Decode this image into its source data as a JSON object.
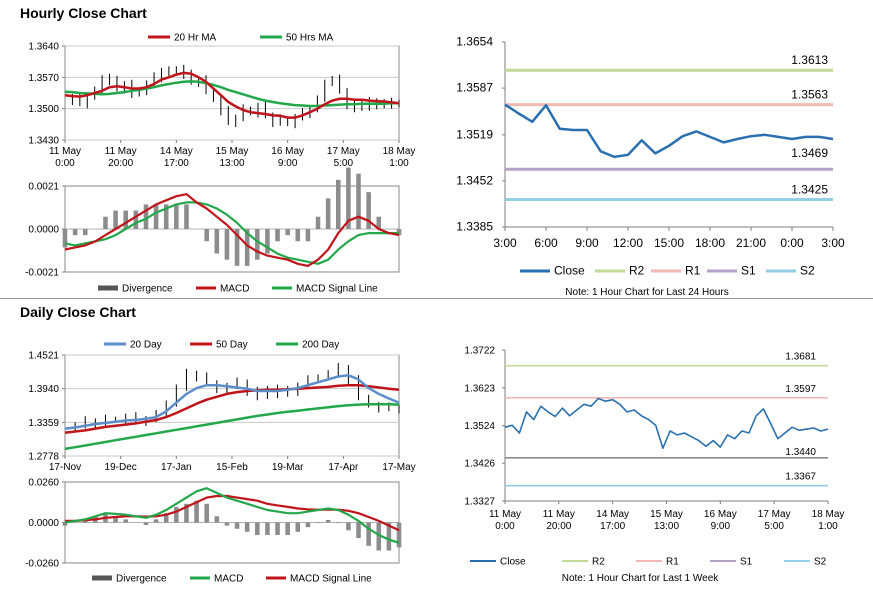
{
  "sections": {
    "hourly_title": "Hourly Close Chart",
    "daily_title": "Daily Close Chart"
  },
  "colors": {
    "ma_short": "#c0141b",
    "ma_long": "#22a84a",
    "close": "#2a70b0",
    "r2": "#c3d99a",
    "r1": "#f2b8b3",
    "s1": "#b4a3c8",
    "s2": "#92cfe2",
    "divergence": "#8c8c8c",
    "price": "#000000",
    "axis": "#7f7f7f",
    "ma_day20": "#5b8ec9"
  },
  "chart_data": [
    {
      "id": "hourly_price",
      "type": "line",
      "title": "Hourly Close Chart",
      "x_tick_labels": [
        [
          "11 May",
          "0:00"
        ],
        [
          "11 May",
          "20:00"
        ],
        [
          "14 May",
          "17:00"
        ],
        [
          "15 May",
          "13:00"
        ],
        [
          "16 May",
          "9:00"
        ],
        [
          "17 May",
          "5:00"
        ],
        [
          "18 May",
          "1:00"
        ]
      ],
      "y_ticks": [
        "1.3640",
        "1.3570",
        "1.3500",
        "1.3430"
      ],
      "ylim": [
        1.343,
        1.364
      ],
      "legend": [
        "20 Hr MA",
        "50 Hrs MA"
      ],
      "series": [
        {
          "name": "Close",
          "values": [
            1.3518,
            1.3525,
            1.3512,
            1.3528,
            1.354,
            1.357,
            1.3562,
            1.3545,
            1.3555,
            1.3532,
            1.354,
            1.3555,
            1.357,
            1.3585,
            1.358,
            1.359,
            1.3576,
            1.356,
            1.3565,
            1.354,
            1.352,
            1.3495,
            1.347,
            1.348,
            1.35,
            1.349,
            1.3505,
            1.3485,
            1.347,
            1.3478,
            1.3466,
            1.348,
            1.349,
            1.35,
            1.352,
            1.356,
            1.3565,
            1.354,
            1.351,
            1.35,
            1.3518,
            1.3505,
            1.3512,
            1.3515,
            1.3508,
            1.3515
          ]
        },
        {
          "name": "20 Hr MA",
          "values": [
            1.353,
            1.3528,
            1.3527,
            1.353,
            1.3535,
            1.354,
            1.3548,
            1.355,
            1.3548,
            1.3545,
            1.3545,
            1.3548,
            1.3555,
            1.3565,
            1.357,
            1.3576,
            1.358,
            1.3578,
            1.357,
            1.356,
            1.3545,
            1.353,
            1.3515,
            1.3505,
            1.3497,
            1.3492,
            1.349,
            1.3488,
            1.3485,
            1.3484,
            1.348,
            1.348,
            1.3485,
            1.3492,
            1.35,
            1.351,
            1.3518,
            1.3522,
            1.3522,
            1.352,
            1.352,
            1.3518,
            1.3517,
            1.3516,
            1.3514,
            1.3512
          ]
        },
        {
          "name": "50 Hrs MA",
          "values": [
            1.3538,
            1.3537,
            1.3535,
            1.3534,
            1.3533,
            1.3532,
            1.3533,
            1.3535,
            1.3537,
            1.354,
            1.3542,
            1.3545,
            1.3548,
            1.3552,
            1.3555,
            1.3558,
            1.356,
            1.3561,
            1.356,
            1.3557,
            1.3553,
            1.3548,
            1.3542,
            1.3537,
            1.3532,
            1.3527,
            1.3522,
            1.3518,
            1.3515,
            1.3512,
            1.351,
            1.3508,
            1.3507,
            1.3506,
            1.3506,
            1.3507,
            1.3508,
            1.3509,
            1.351,
            1.351,
            1.3511,
            1.3511,
            1.3511,
            1.3511,
            1.3512,
            1.3512
          ]
        }
      ]
    },
    {
      "id": "hourly_macd",
      "type": "line",
      "y_ticks": [
        "0.0021",
        "0.0000",
        "-0.0021"
      ],
      "ylim": [
        -0.0021,
        0.0021
      ],
      "legend": [
        "Divergence",
        "MACD",
        "MACD Signal Line"
      ],
      "series": [
        {
          "name": "MACD",
          "values": [
            -0.001,
            -0.0009,
            -0.0008,
            -0.0006,
            -0.0003,
            0.0,
            0.0003,
            0.0006,
            0.0009,
            0.0012,
            0.0014,
            0.0016,
            0.0017,
            0.0013,
            0.001,
            0.0006,
            0.0002,
            -0.0003,
            -0.0008,
            -0.0011,
            -0.0013,
            -0.0014,
            -0.0015,
            -0.0017,
            -0.0018,
            -0.0015,
            -0.001,
            -0.0002,
            0.0004,
            0.0006,
            0.0004,
            0.0,
            -0.0002,
            -0.0003
          ]
        },
        {
          "name": "MACD Signal Line",
          "values": [
            -0.0007,
            -0.0008,
            -0.0007,
            -0.0006,
            -0.0005,
            -0.0003,
            0.0,
            0.0003,
            0.0005,
            0.0008,
            0.001,
            0.0012,
            0.0013,
            0.0013,
            0.0012,
            0.001,
            0.0007,
            0.0003,
            -0.0002,
            -0.0006,
            -0.0009,
            -0.0012,
            -0.0014,
            -0.0015,
            -0.0016,
            -0.0017,
            -0.0015,
            -0.001,
            -0.0006,
            -0.0003,
            -0.0002,
            -0.0002,
            -0.0002,
            -0.0002
          ]
        }
      ]
    },
    {
      "id": "hourly_levels",
      "type": "line",
      "x_tick_labels": [
        "3:00",
        "6:00",
        "9:00",
        "12:00",
        "15:00",
        "18:00",
        "21:00",
        "0:00",
        "3:00"
      ],
      "y_ticks": [
        "1.3654",
        "1.3587",
        "1.3519",
        "1.3452",
        "1.3385"
      ],
      "ylim": [
        1.3385,
        1.3654
      ],
      "levels": {
        "R2": 1.3613,
        "R1": 1.3563,
        "S1": 1.3469,
        "S2": 1.3425
      },
      "level_labels": [
        "1.3613",
        "1.3563",
        "1.3469",
        "1.3425"
      ],
      "legend": [
        "Close",
        "R2",
        "R1",
        "S1",
        "S2"
      ],
      "note": "Note: 1 Hour Chart for Last 24 Hours",
      "series": [
        {
          "name": "Close",
          "values": [
            1.3563,
            1.355,
            1.3538,
            1.3562,
            1.3528,
            1.3526,
            1.3526,
            1.3495,
            1.3487,
            1.349,
            1.3511,
            1.3492,
            1.3503,
            1.3517,
            1.3524,
            1.3516,
            1.3508,
            1.3513,
            1.3517,
            1.3519,
            1.3516,
            1.3513,
            1.3516,
            1.3516,
            1.3513
          ]
        }
      ]
    },
    {
      "id": "daily_price",
      "type": "line",
      "title": "Daily Close Chart",
      "x_tick_labels": [
        "17-Nov",
        "19-Dec",
        "17-Jan",
        "15-Feb",
        "19-Mar",
        "17-Apr",
        "17-May"
      ],
      "y_ticks": [
        "1.4521",
        "1.3940",
        "1.3359",
        "1.2778"
      ],
      "ylim": [
        1.2778,
        1.4521
      ],
      "legend": [
        "20 Day",
        "50 Day",
        "200 Day"
      ],
      "series": [
        {
          "name": "Close",
          "values": [
            1.325,
            1.33,
            1.338,
            1.335,
            1.342,
            1.34,
            1.345,
            1.338,
            1.342,
            1.35,
            1.37,
            1.395,
            1.42,
            1.415,
            1.405,
            1.39,
            1.398,
            1.405,
            1.39,
            1.38,
            1.395,
            1.385,
            1.39,
            1.4,
            1.41,
            1.415,
            1.42,
            1.43,
            1.41,
            1.38,
            1.365,
            1.36,
            1.362,
            1.36
          ]
        },
        {
          "name": "20 Day",
          "values": [
            1.325,
            1.327,
            1.33,
            1.333,
            1.335,
            1.337,
            1.339,
            1.34,
            1.342,
            1.345,
            1.355,
            1.37,
            1.385,
            1.395,
            1.4,
            1.4,
            1.398,
            1.396,
            1.394,
            1.39,
            1.39,
            1.39,
            1.392,
            1.395,
            1.4,
            1.405,
            1.41,
            1.415,
            1.417,
            1.41,
            1.395,
            1.385,
            1.377,
            1.37
          ]
        },
        {
          "name": "50 Day",
          "values": [
            1.318,
            1.32,
            1.322,
            1.325,
            1.328,
            1.33,
            1.332,
            1.334,
            1.337,
            1.34,
            1.345,
            1.352,
            1.36,
            1.368,
            1.375,
            1.38,
            1.385,
            1.388,
            1.39,
            1.391,
            1.392,
            1.392,
            1.393,
            1.394,
            1.395,
            1.396,
            1.397,
            1.399,
            1.4,
            1.4,
            1.398,
            1.396,
            1.394,
            1.392
          ]
        },
        {
          "name": "200 Day",
          "values": [
            1.29,
            1.293,
            1.296,
            1.299,
            1.302,
            1.305,
            1.308,
            1.311,
            1.314,
            1.317,
            1.32,
            1.323,
            1.326,
            1.329,
            1.332,
            1.335,
            1.338,
            1.341,
            1.344,
            1.347,
            1.3495,
            1.352,
            1.354,
            1.356,
            1.358,
            1.36,
            1.362,
            1.364,
            1.3655,
            1.3665,
            1.367,
            1.3672,
            1.367,
            1.3665
          ]
        }
      ]
    },
    {
      "id": "daily_macd",
      "type": "line",
      "y_ticks": [
        "0.0260",
        "0.0000",
        "-0.0260"
      ],
      "ylim": [
        -0.026,
        0.026
      ],
      "legend": [
        "Divergence",
        "MACD",
        "MACD Signal Line"
      ],
      "series": [
        {
          "name": "MACD",
          "values": [
            0.0,
            0.001,
            0.002,
            0.004,
            0.006,
            0.0055,
            0.005,
            0.004,
            0.003,
            0.005,
            0.008,
            0.012,
            0.016,
            0.02,
            0.022,
            0.019,
            0.016,
            0.014,
            0.012,
            0.01,
            0.008,
            0.007,
            0.006,
            0.006,
            0.007,
            0.008,
            0.009,
            0.008,
            0.005,
            0.001,
            -0.004,
            -0.008,
            -0.011,
            -0.013
          ]
        },
        {
          "name": "MACD Signal Line",
          "values": [
            0.001,
            0.001,
            0.0015,
            0.002,
            0.003,
            0.0035,
            0.004,
            0.004,
            0.0038,
            0.004,
            0.005,
            0.007,
            0.01,
            0.013,
            0.016,
            0.017,
            0.017,
            0.016,
            0.015,
            0.014,
            0.012,
            0.011,
            0.01,
            0.009,
            0.0085,
            0.0082,
            0.0082,
            0.0082,
            0.0075,
            0.006,
            0.0035,
            0.001,
            -0.002,
            -0.005
          ]
        }
      ]
    },
    {
      "id": "daily_levels",
      "type": "line",
      "x_tick_labels": [
        [
          "11 May",
          "0:00"
        ],
        [
          "11 May",
          "20:00"
        ],
        [
          "14 May",
          "17:00"
        ],
        [
          "15 May",
          "13:00"
        ],
        [
          "16 May",
          "9:00"
        ],
        [
          "17 May",
          "5:00"
        ],
        [
          "18 May",
          "1:00"
        ]
      ],
      "y_ticks": [
        "1.3722",
        "1.3623",
        "1.3524",
        "1.3426",
        "1.3327"
      ],
      "ylim": [
        1.3327,
        1.3722
      ],
      "levels": {
        "R2": 1.3681,
        "R1": 1.3597,
        "S1": 1.344,
        "S2": 1.3367
      },
      "level_labels": [
        "1.3681",
        "1.3597",
        "1.3440",
        "1.3367"
      ],
      "legend": [
        "Close",
        "R2",
        "R1",
        "S1",
        "S2"
      ],
      "note": "Note: 1 Hour Chart for Last 1 Week",
      "series": [
        {
          "name": "Close",
          "values": [
            1.352,
            1.3525,
            1.3505,
            1.356,
            1.354,
            1.3575,
            1.356,
            1.3548,
            1.357,
            1.355,
            1.3565,
            1.358,
            1.3575,
            1.3595,
            1.3588,
            1.3592,
            1.358,
            1.356,
            1.3565,
            1.355,
            1.354,
            1.3525,
            1.3465,
            1.351,
            1.35,
            1.3505,
            1.3495,
            1.3485,
            1.347,
            1.3485,
            1.3468,
            1.35,
            1.349,
            1.351,
            1.3505,
            1.355,
            1.3568,
            1.353,
            1.349,
            1.3505,
            1.352,
            1.3512,
            1.3515,
            1.3518,
            1.351,
            1.3515
          ]
        }
      ]
    }
  ]
}
